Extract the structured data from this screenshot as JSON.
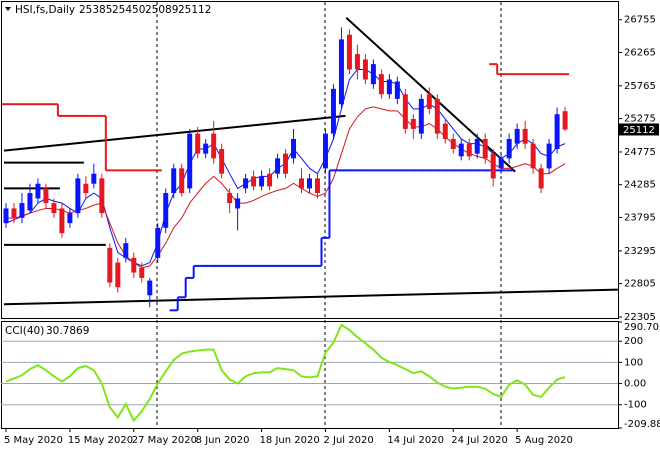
{
  "chart_data": [
    {
      "type": "candlestick",
      "title": "HSI,fs,Daily",
      "categories": [
        "5 May 2020",
        null,
        null,
        null,
        null,
        null,
        null,
        null,
        "15 May 2020",
        null,
        null,
        null,
        null,
        null,
        null,
        null,
        "27 May 2020",
        null,
        null,
        null,
        null,
        null,
        null,
        null,
        "8 Jun 2020",
        null,
        null,
        null,
        null,
        null,
        null,
        null,
        "18 Jun 2020",
        null,
        null,
        null,
        null,
        null,
        null,
        null,
        "2 Jul 2020",
        null,
        null,
        null,
        null,
        null,
        null,
        null,
        "14 Jul 2020",
        null,
        null,
        null,
        null,
        null,
        null,
        null,
        "24 Jul 2020",
        null,
        null,
        null,
        null,
        null,
        null,
        null,
        "5 Aug 2020",
        null,
        null,
        null,
        null,
        null,
        null
      ],
      "open": [
        23710,
        23930,
        23790,
        23900,
        24080,
        24230,
        24010,
        23930,
        23710,
        23860,
        24300,
        24300,
        24380,
        23340,
        23120,
        23190,
        23190,
        23040,
        22630,
        23190,
        23640,
        24160,
        24530,
        24230,
        25050,
        24750,
        25050,
        24820,
        24160,
        23930,
        24230,
        24410,
        24260,
        24450,
        24450,
        24750,
        24680,
        24380,
        24230,
        24380,
        24530,
        25050,
        25490,
        26530,
        26240,
        26160,
        25790,
        25940,
        25640,
        25570,
        25640,
        25270,
        25050,
        25640,
        25570,
        25200,
        24970,
        24710,
        24900,
        24750,
        24970,
        24750,
        24530,
        24680,
        24900,
        25120,
        24900,
        24530,
        24530,
        24820,
        25385
      ],
      "high": [
        24010,
        24010,
        24160,
        24300,
        24380,
        24300,
        24080,
        24010,
        23930,
        24450,
        24410,
        24600,
        24450,
        23410,
        23190,
        23490,
        23270,
        23120,
        22890,
        23710,
        24230,
        24600,
        24600,
        25120,
        25150,
        24970,
        25240,
        24900,
        24230,
        24160,
        24450,
        24500,
        24500,
        24530,
        24750,
        24820,
        25120,
        24530,
        24450,
        24450,
        25120,
        25790,
        26640,
        26610,
        26380,
        26240,
        26160,
        26010,
        25940,
        25900,
        25720,
        25340,
        25640,
        25740,
        25640,
        25270,
        25050,
        24970,
        24970,
        25050,
        25050,
        24820,
        24750,
        25050,
        25200,
        25240,
        24970,
        24600,
        24970,
        25440,
        25450
      ],
      "low": [
        23640,
        23710,
        23710,
        23860,
        24010,
        23930,
        23790,
        23490,
        23640,
        23790,
        24080,
        24230,
        23790,
        22750,
        22670,
        23120,
        22890,
        22820,
        22450,
        23120,
        23560,
        24080,
        24110,
        24160,
        24680,
        24680,
        24600,
        24380,
        23860,
        23600,
        24160,
        24200,
        24200,
        24200,
        24380,
        24380,
        24600,
        24160,
        24160,
        24080,
        24450,
        24970,
        25420,
        25940,
        25860,
        25790,
        25720,
        25570,
        25570,
        25490,
        25050,
        24970,
        24970,
        25340,
        24970,
        24900,
        24750,
        24650,
        24650,
        24680,
        24600,
        24260,
        24450,
        24600,
        24820,
        24820,
        24450,
        24160,
        24450,
        24750,
        25089
      ],
      "close": [
        23930,
        23790,
        24010,
        24160,
        24300,
        24010,
        23860,
        23560,
        23860,
        24380,
        24160,
        24450,
        23860,
        22820,
        22750,
        23410,
        22970,
        22890,
        22850,
        23640,
        24160,
        24530,
        24160,
        25050,
        24750,
        24900,
        24680,
        24450,
        24010,
        24080,
        24380,
        24260,
        24410,
        24260,
        24680,
        24450,
        24970,
        24230,
        24380,
        24160,
        25050,
        25720,
        26460,
        26010,
        26010,
        25860,
        26090,
        25640,
        25860,
        25830,
        25120,
        25120,
        25570,
        25420,
        25050,
        24970,
        24820,
        24900,
        24710,
        24970,
        24680,
        24380,
        24680,
        24970,
        25120,
        24900,
        24530,
        24230,
        24900,
        25340,
        25112
      ],
      "up_color": "#0a14ff",
      "down_color": "#e8171f",
      "overlays": [
        {
          "color": "#0a14ff",
          "values": [
            23710,
            23760,
            23815,
            23860,
            24010,
            24080,
            24040,
            24010,
            23930,
            23860,
            24080,
            24160,
            24080,
            23640,
            23270,
            23190,
            23120,
            23070,
            23120,
            23410,
            23860,
            24160,
            24300,
            24600,
            24820,
            24820,
            24900,
            24680,
            24450,
            24230,
            24300,
            24380,
            24410,
            24410,
            24530,
            24600,
            24820,
            24680,
            24530,
            24450,
            24680,
            24970,
            25420,
            25860,
            26010,
            26010,
            25940,
            25830,
            25830,
            25790,
            25570,
            25420,
            25420,
            25490,
            25420,
            25270,
            25120,
            24970,
            24900,
            24900,
            24850,
            24750,
            24680,
            24750,
            24900,
            24970,
            24900,
            24750,
            24710,
            24850,
            24900
          ]
        },
        {
          "color": "#d4141c",
          "values": [
            23785,
            23785,
            23815,
            23860,
            23900,
            23930,
            23930,
            23900,
            23860,
            23900,
            23930,
            23980,
            24010,
            23710,
            23410,
            23220,
            23120,
            23040,
            23070,
            23220,
            23410,
            23640,
            23785,
            24010,
            24160,
            24305,
            24410,
            24305,
            24160,
            24010,
            24010,
            24050,
            24110,
            24160,
            24200,
            24230,
            24305,
            24230,
            24160,
            24110,
            24160,
            24380,
            24750,
            25120,
            25300,
            25420,
            25450,
            25420,
            25390,
            25390,
            25270,
            25150,
            25150,
            25200,
            25120,
            25000,
            24900,
            24825,
            24750,
            24710,
            24680,
            24600,
            24530,
            24530,
            24560,
            24600,
            24560,
            24450,
            24450,
            24530,
            24600
          ]
        },
        {
          "color": "#e8171f",
          "step": true,
          "values": [
            25490,
            25490,
            25490,
            25490,
            25490,
            25490,
            25490,
            25315,
            25315,
            25315,
            25315,
            25315,
            25315,
            24500,
            24500,
            24500,
            24500,
            24500,
            24500,
            24500,
            null,
            null,
            null,
            null,
            null,
            null,
            null,
            null,
            null,
            null,
            null,
            null,
            null,
            null,
            null,
            null,
            null,
            null,
            null,
            null,
            null,
            null,
            null,
            null,
            null,
            null,
            null,
            null,
            null,
            null,
            null,
            null,
            null,
            null,
            null,
            null,
            null,
            null,
            null,
            null,
            null,
            26090,
            25940,
            25940,
            25940,
            25940,
            25940,
            25940,
            25940,
            25940,
            25940
          ]
        },
        {
          "color": "#0a14ff",
          "step": true,
          "values": [
            null,
            null,
            null,
            null,
            null,
            null,
            null,
            null,
            null,
            null,
            null,
            null,
            null,
            null,
            null,
            null,
            null,
            null,
            null,
            null,
            null,
            22405,
            22600,
            22890,
            23070,
            23070,
            23070,
            23070,
            23070,
            23070,
            23070,
            23070,
            23070,
            23070,
            23070,
            23070,
            23070,
            23070,
            23070,
            23070,
            23490,
            24500,
            24500,
            24500,
            24500,
            24500,
            24500,
            24500,
            24500,
            24500,
            24500,
            24500,
            24500,
            24500,
            24500,
            24500,
            24500,
            24500,
            24500,
            24500,
            24500,
            24500,
            24500,
            24500,
            null,
            null,
            null,
            null,
            null,
            null,
            null
          ]
        }
      ],
      "lines": [
        {
          "color": "#000000",
          "x": [
            -0.25,
            42.5
          ],
          "values": [
            24795,
            25315
          ]
        },
        {
          "color": "#000000",
          "x": [
            -0.25,
            76.6
          ],
          "values": [
            22495,
            22715
          ]
        },
        {
          "color": "#000000",
          "x": [
            42.6,
            63.75
          ],
          "values": [
            26785,
            24480
          ]
        },
        {
          "color": "#000000",
          "x": [
            -0.25,
            9.75
          ],
          "values": [
            24615,
            24615
          ]
        },
        {
          "color": "#000000",
          "x": [
            -0.25,
            12.5
          ],
          "values": [
            23385,
            23385
          ]
        },
        {
          "color": "#000000",
          "x": [
            -0.25,
            6.75
          ],
          "values": [
            24230,
            24230
          ]
        }
      ],
      "xlim": [
        -0.625,
        76.625
      ],
      "ylim": [
        22290,
        27020
      ],
      "yticks": [
        26755,
        26265,
        25765,
        25275,
        24775,
        24285,
        23795,
        23295,
        22805,
        22305
      ]
    },
    {
      "type": "line",
      "title": "CCI(40)",
      "series": [
        {
          "color": "#7fe619",
          "values": [
            10,
            24,
            39,
            68,
            87,
            63,
            34,
            10,
            34,
            73,
            83,
            63,
            0,
            -112,
            -160,
            -97,
            -175,
            -131,
            -73,
            0,
            58,
            112,
            141,
            151,
            156,
            160,
            160,
            63,
            19,
            0,
            34,
            49,
            53,
            53,
            73,
            68,
            63,
            34,
            29,
            34,
            146,
            194,
            277,
            253,
            219,
            190,
            160,
            122,
            102,
            87,
            68,
            49,
            58,
            34,
            5,
            -15,
            -24,
            -19,
            -15,
            -15,
            -24,
            -49,
            -63,
            -5,
            15,
            -5,
            -53,
            -63,
            -19,
            19,
            30.7869
          ]
        }
      ],
      "ylim": [
        -209.886,
        290.7027
      ],
      "yticks": [
        290.7027,
        200,
        100,
        {
          "value": 0,
          "label": "0.00"
        },
        -100,
        -209.886
      ],
      "grid": true
    }
  ]
}
